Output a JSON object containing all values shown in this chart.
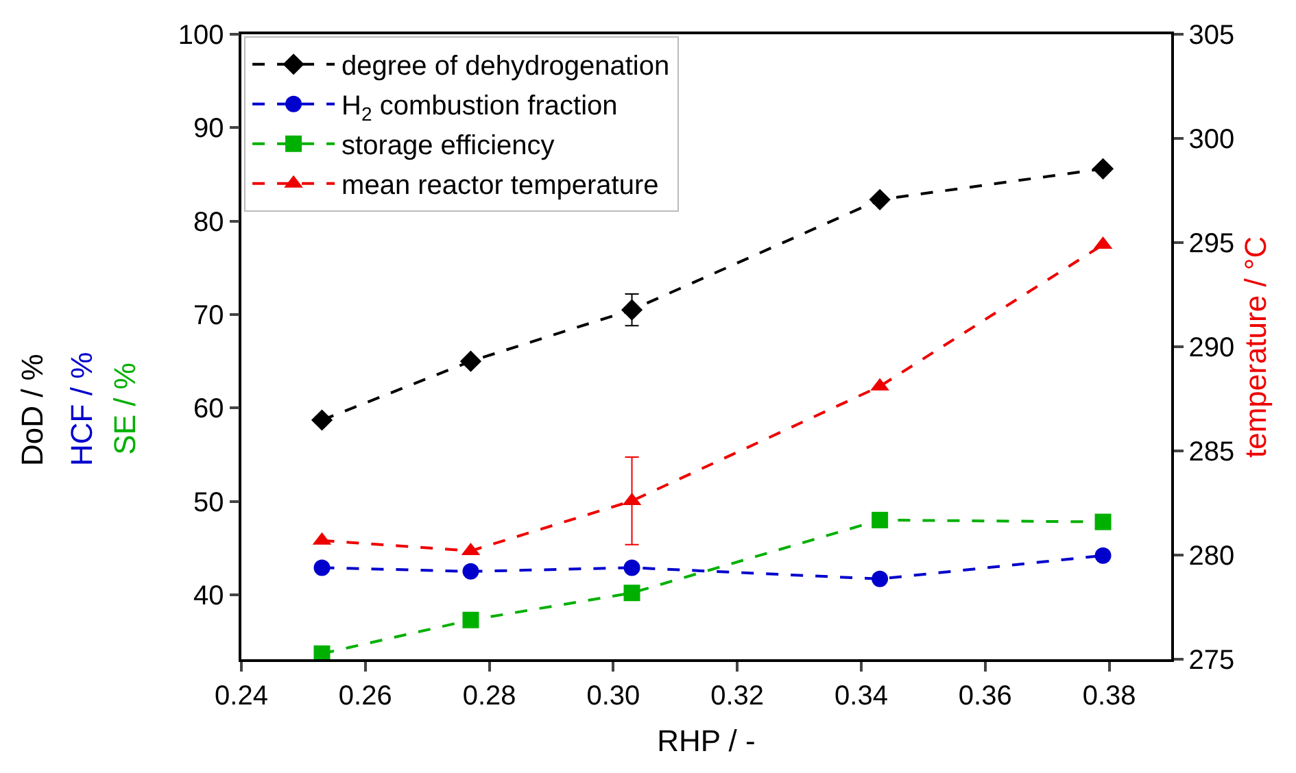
{
  "chart_data": {
    "type": "line",
    "xlabel": "RHP / -",
    "ylabel": "DoD / %",
    "y2label": "temperature / °C",
    "annotations": [
      "HCF / %",
      "SE / %"
    ],
    "xlim": [
      0.24,
      0.39
    ],
    "xticks": [
      {
        "value": 0.24,
        "label": "0.24"
      },
      {
        "value": 0.26,
        "label": "0.26"
      },
      {
        "value": 0.28,
        "label": "0.28"
      },
      {
        "value": 0.3,
        "label": "0.30"
      },
      {
        "value": 0.32,
        "label": "0.32"
      },
      {
        "value": 0.34,
        "label": "0.34"
      },
      {
        "value": 0.36,
        "label": "0.36"
      },
      {
        "value": 0.38,
        "label": "0.38"
      }
    ],
    "ylim": [
      33.1,
      100
    ],
    "yticks": [
      40,
      50,
      60,
      70,
      80,
      90,
      100
    ],
    "y2lim": [
      275,
      305
    ],
    "y2ticks": [
      275,
      280,
      285,
      290,
      295,
      300,
      305
    ],
    "x": [
      0.253,
      0.277,
      0.303,
      0.343,
      0.379
    ],
    "legend": "top left",
    "grid": false,
    "line_style": "dashed",
    "series": [
      {
        "name": "degree of dehydrogenation",
        "color": "#000000",
        "marker": "diamond",
        "values": [
          58.7,
          65.0,
          70.5,
          82.3,
          85.6
        ],
        "errors": [
          null,
          null,
          1.7,
          null,
          null
        ]
      },
      {
        "name": "H$_{2}$ combustion fraction",
        "color": "#0000cc",
        "marker": "circle",
        "values": [
          42.9,
          42.5,
          42.9,
          41.7,
          44.2
        ]
      },
      {
        "name": "storage efficiency",
        "color": "#00b000",
        "marker": "square",
        "values": [
          33.7,
          37.3,
          40.2,
          48.0,
          47.8
        ]
      },
      {
        "name": "mean reactor temperature",
        "color": "#ee0000",
        "marker": "triangle",
        "axis": "y2",
        "values": [
          280.7,
          280.2,
          282.6,
          288.1,
          294.9
        ],
        "errors": [
          null,
          null,
          2.1,
          null,
          null
        ]
      }
    ]
  }
}
